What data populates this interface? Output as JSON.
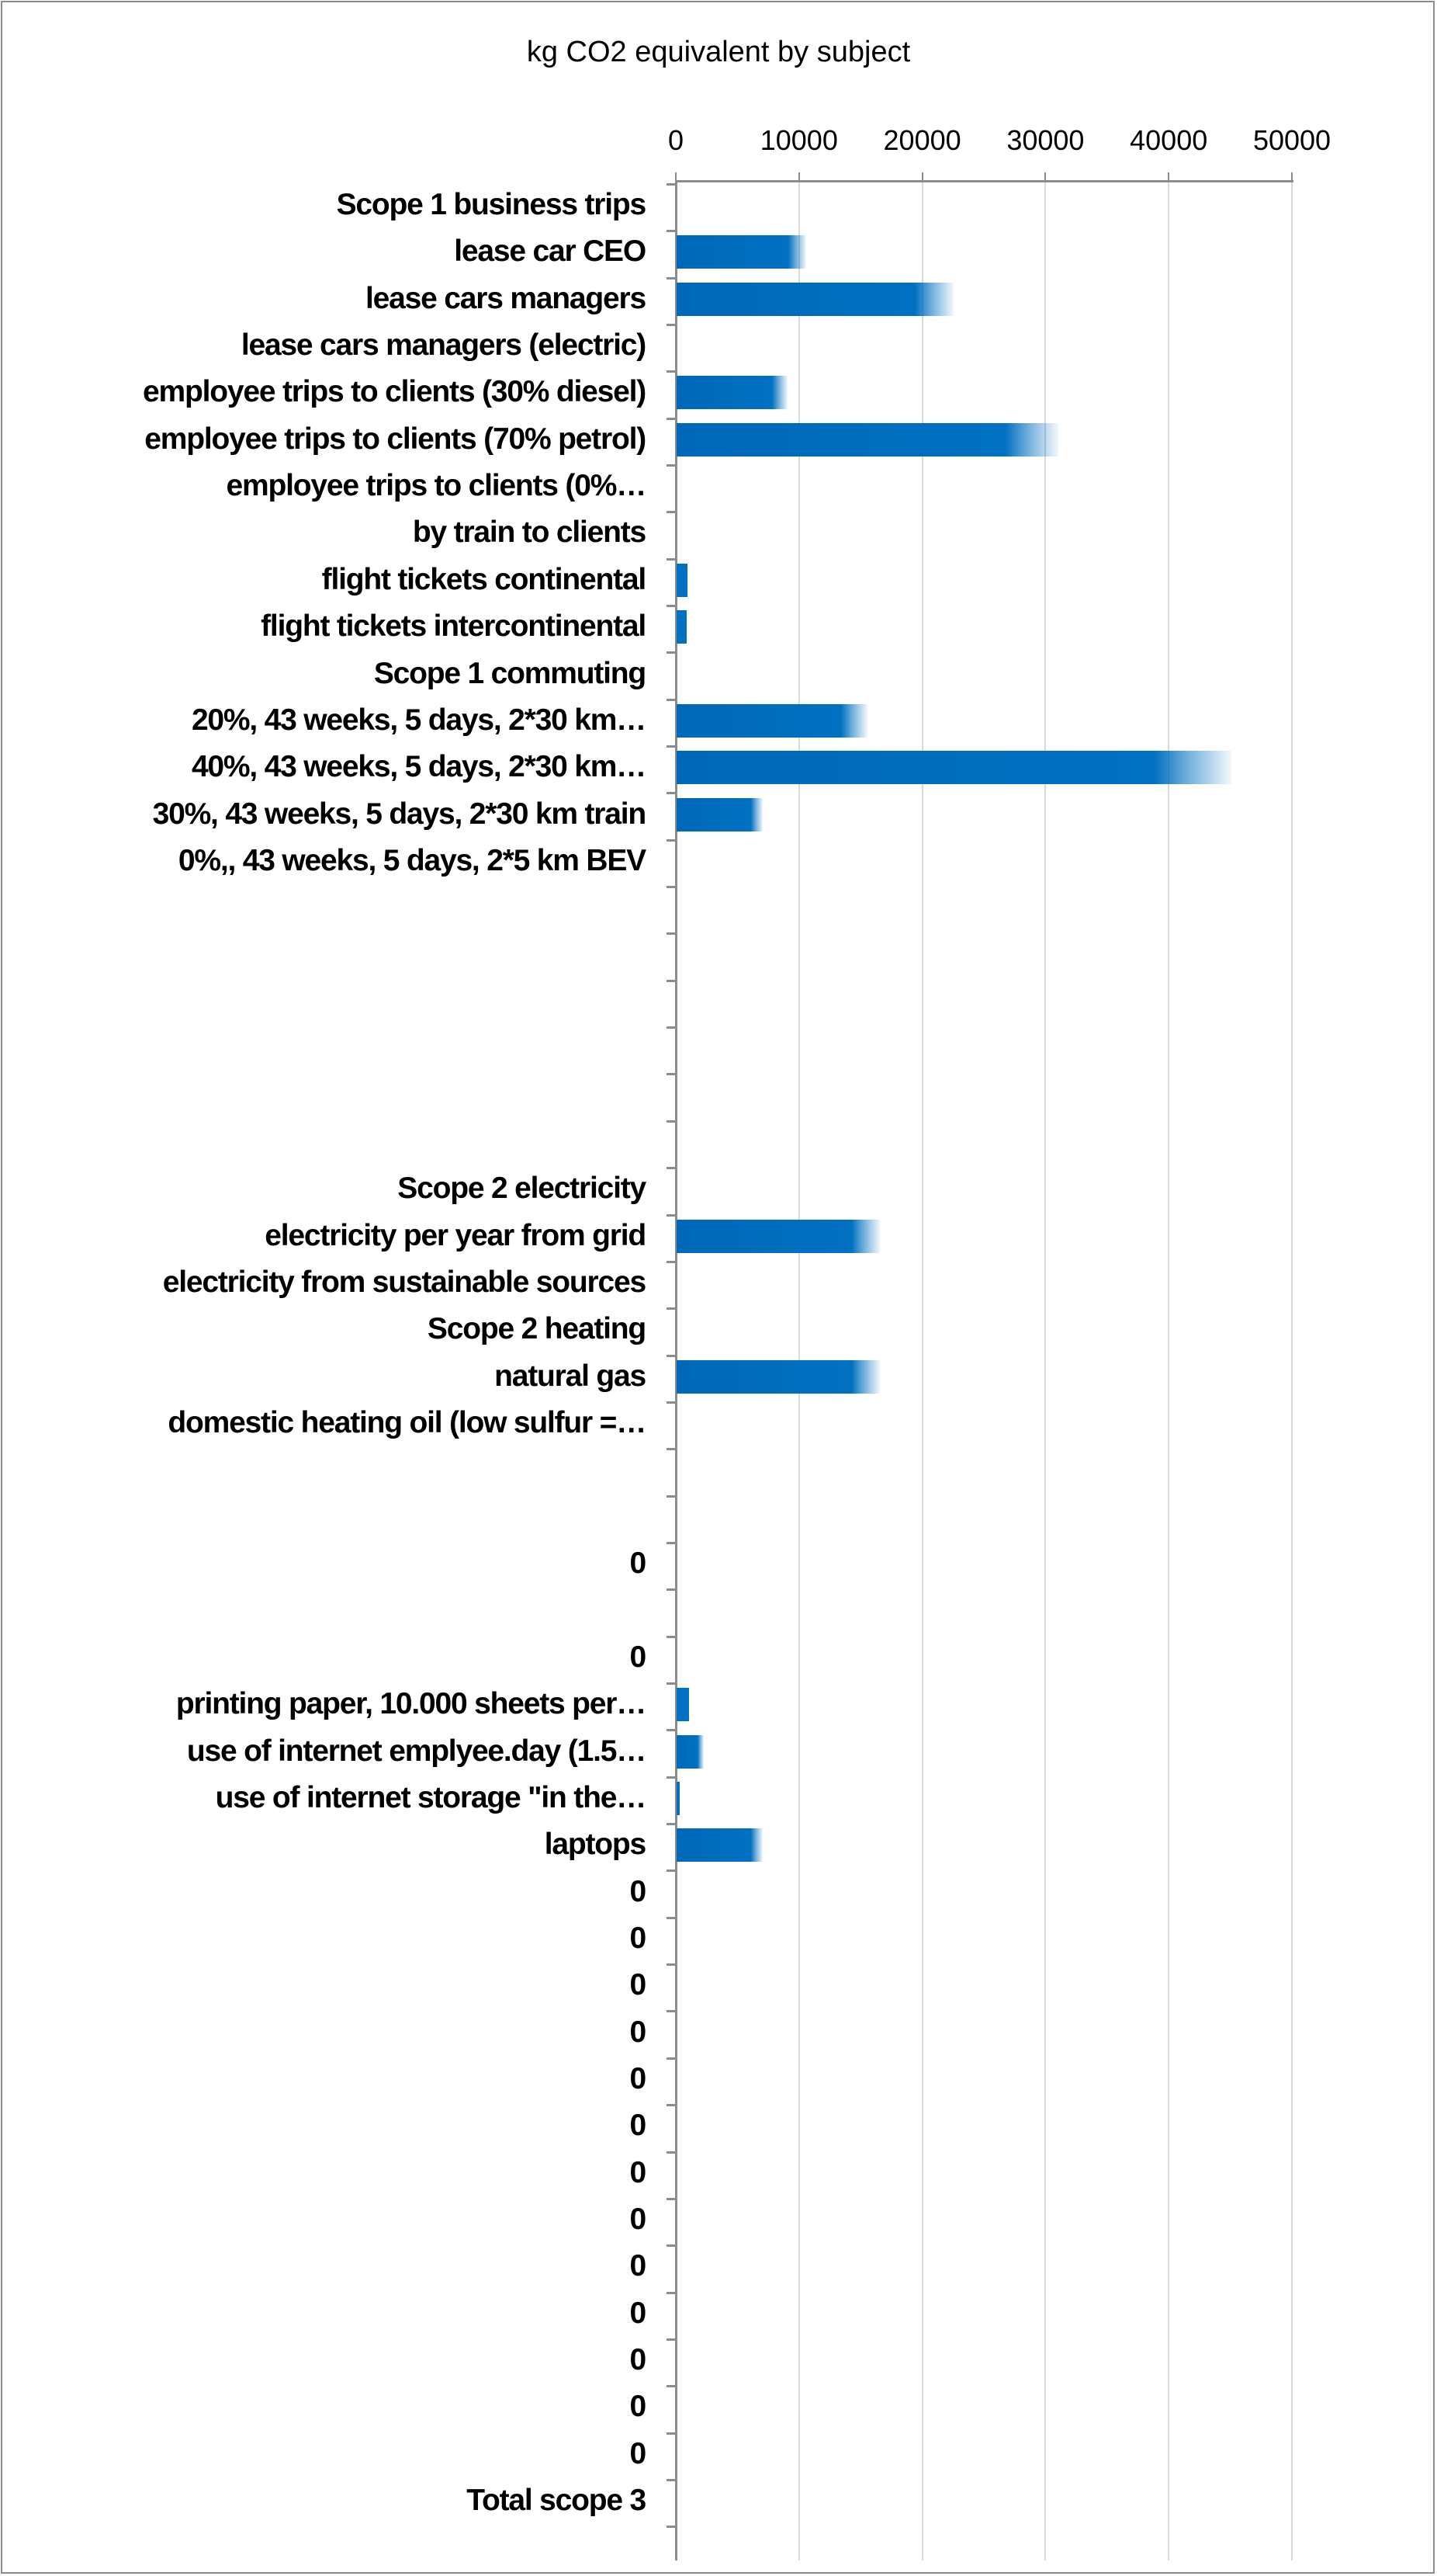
{
  "chart_data": {
    "type": "bar",
    "orientation": "horizontal",
    "title": "kg CO2 equivalent by subject",
    "xlabel": "",
    "ylabel": "",
    "xlim": [
      0,
      50000
    ],
    "xticks": [
      "0",
      "10000",
      "20000",
      "30000",
      "40000",
      "50000"
    ],
    "xtick_values": [
      0,
      10000,
      20000,
      30000,
      40000,
      50000
    ],
    "x_axis_position": "top",
    "grid": true,
    "bar_color": "#0070c0",
    "bar_style": "gradient fade at end",
    "categories": [
      "Scope 1 business trips",
      "lease car CEO",
      "lease cars managers",
      "lease cars managers (electric)",
      "employee trips to clients (30% diesel)",
      "employee trips to clients (70% petrol)",
      "employee trips to clients (0%…",
      "by train to clients",
      "flight tickets continental",
      "flight tickets intercontinental",
      "Scope 1 commuting",
      "20%, 43 weeks, 5 days, 2*30 km…",
      "40%, 43 weeks, 5 days, 2*30 km…",
      "30%, 43 weeks, 5 days, 2*30 km train",
      "0%,, 43 weeks, 5 days, 2*5 km BEV",
      "",
      "",
      "",
      "",
      "",
      "",
      "Scope 2 electricity",
      "electricity per year from grid",
      "electricity from sustainable sources",
      "Scope 2 heating",
      "natural gas",
      "domestic heating oil (low sulfur =…",
      "",
      "",
      "0",
      "",
      "0",
      "printing paper, 10.000 sheets per…",
      "use of internet emplyee.day (1.5…",
      "use of internet storage \"in the…",
      "laptops",
      "0",
      "0",
      "0",
      "0",
      "0",
      "0",
      "0",
      "0",
      "0",
      "0",
      "0",
      "0",
      "0",
      "Total scope  3"
    ],
    "values": [
      null,
      10500,
      22500,
      null,
      9000,
      31000,
      null,
      null,
      900,
      800,
      null,
      15500,
      45000,
      7000,
      null,
      null,
      null,
      null,
      null,
      null,
      null,
      null,
      16500,
      null,
      null,
      16500,
      null,
      null,
      null,
      null,
      null,
      null,
      1000,
      2200,
      250,
      7000,
      null,
      null,
      null,
      null,
      null,
      null,
      null,
      null,
      null,
      null,
      null,
      null,
      null,
      null
    ]
  }
}
